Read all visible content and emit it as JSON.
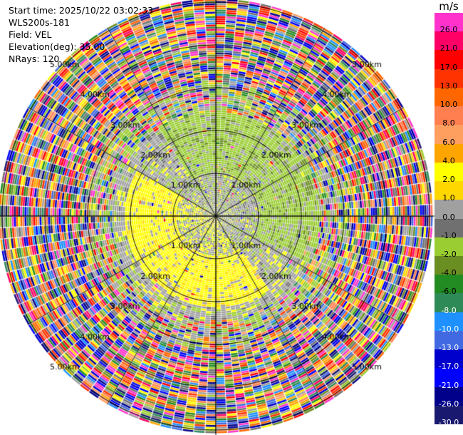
{
  "info": {
    "start_time": "Start time: 2025/10/22 03:02:33",
    "station": "WLS200s-181",
    "field": "Field: VEL",
    "elevation": "Elevation(deg): 35.00",
    "nrays": "NRays: 120"
  },
  "chart_data": {
    "type": "heatmap",
    "projection": "polar PPI",
    "field": "VEL",
    "units": "m/s",
    "elevation_deg": 35.0,
    "n_rays": 120,
    "range_rings_km": [
      1.0,
      2.0,
      3.0,
      4.0,
      5.0
    ],
    "ring_labels": [
      "1.00km",
      "2.00km",
      "3.00km",
      "4.00km",
      "5.00km"
    ],
    "colorbar": {
      "unit": "m/s",
      "ticks": [
        "26.0",
        "21.0",
        "17.0",
        "13.0",
        "10.0",
        "8.0",
        "6.0",
        "4.0",
        "2.0",
        "1.0",
        "0.0",
        "-1.0",
        "-2.0",
        "-4.0",
        "-6.0",
        "-8.0",
        "-10.0",
        "-13.0",
        "-17.0",
        "-21.0",
        "-26.0",
        "-30.0"
      ],
      "colors": [
        "#ff33cc",
        "#ff0066",
        "#ff0000",
        "#ff3300",
        "#ff6600",
        "#ff7f50",
        "#ff9f5f",
        "#ffa500",
        "#ffff00",
        "#ffd700",
        "#a0a0a0",
        "#707070",
        "#9acd32",
        "#6b8e23",
        "#228b22",
        "#2e8b57",
        "#1e90ff",
        "#4169e1",
        "#0000cd",
        "#0000ff",
        "#00008b",
        "#191970"
      ]
    }
  }
}
